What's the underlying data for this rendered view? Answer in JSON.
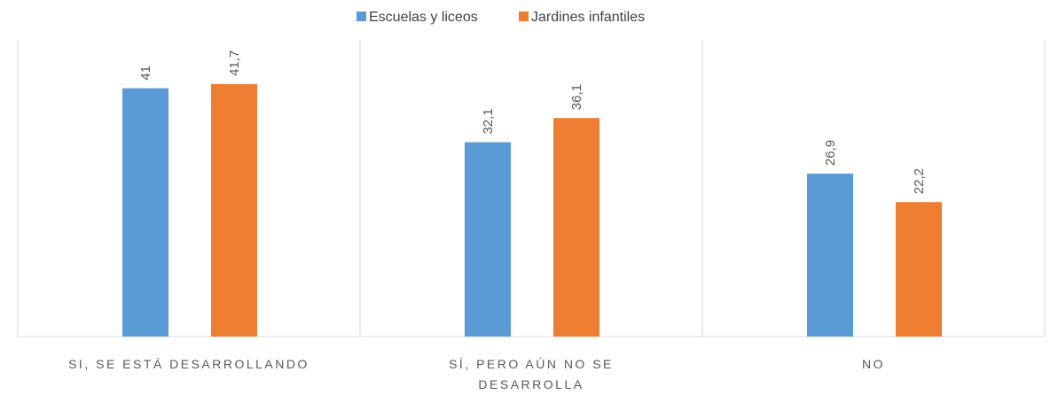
{
  "chart_data": {
    "type": "bar",
    "categories": [
      "SI, SE ESTÁ DESARROLLANDO",
      "SÍ, PERO AÚN NO SE DESARROLLA",
      "NO"
    ],
    "series": [
      {
        "name": "Escuelas y liceos",
        "color": "#5b9bd5",
        "values": [
          41,
          32.1,
          26.9
        ],
        "value_labels": [
          "41",
          "32,1",
          "26,9"
        ]
      },
      {
        "name": "Jardines infantiles",
        "color": "#ed7d31",
        "values": [
          41.7,
          36.1,
          22.2
        ],
        "value_labels": [
          "41,7",
          "36,1",
          "22,2"
        ]
      }
    ],
    "ylim": [
      0,
      49
    ],
    "legend": "top"
  }
}
